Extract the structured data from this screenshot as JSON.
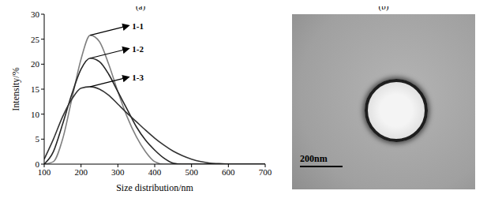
{
  "chart_data": {
    "type": "line",
    "title": "(a)",
    "x_label": "Size distribution/nm",
    "y_label": "Intensity/%",
    "x": [
      100,
      125,
      150,
      175,
      200,
      225,
      250,
      275,
      300,
      325,
      350,
      375,
      400,
      425,
      450,
      475,
      500,
      525,
      550,
      575,
      600,
      625,
      650,
      675,
      700
    ],
    "xlim": [
      100,
      700
    ],
    "xticks": [
      100,
      200,
      300,
      400,
      500,
      600,
      700
    ],
    "ylim": [
      0,
      30
    ],
    "yticks": [
      0,
      5,
      10,
      15,
      20,
      25,
      30
    ],
    "grid": false,
    "series": [
      {
        "name": "1-1",
        "color": "#808080",
        "values": [
          0,
          0.5,
          5,
          13,
          21,
          25.8,
          24.5,
          20,
          14.5,
          9.5,
          5.5,
          2.5,
          0.5,
          0,
          0,
          0,
          0,
          0,
          0,
          0,
          0,
          0,
          0,
          0,
          0
        ]
      },
      {
        "name": "1-2",
        "color": "#262626",
        "values": [
          0,
          2.5,
          8,
          14,
          19,
          21.2,
          20.5,
          18,
          14.5,
          11,
          7.5,
          4.8,
          2.8,
          1.2,
          0.2,
          0,
          0,
          0,
          0,
          0,
          0,
          0,
          0,
          0,
          0
        ]
      },
      {
        "name": "1-3",
        "color": "#333333",
        "values": [
          1,
          5,
          9.5,
          13,
          15.2,
          15.5,
          15,
          13.8,
          12,
          10.2,
          8.5,
          6.8,
          5.2,
          3.8,
          2.6,
          1.7,
          1,
          0.5,
          0.2,
          0.1,
          0,
          0,
          0,
          0,
          0
        ]
      }
    ]
  },
  "image": {
    "label": "(b)",
    "scale_bar": "200nm"
  }
}
